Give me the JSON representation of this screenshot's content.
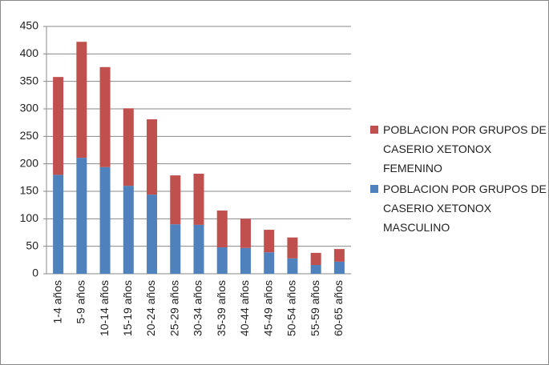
{
  "chart_data": {
    "type": "bar",
    "stacked": true,
    "categories": [
      "1-4 años",
      "5-9 años",
      "10-14 años",
      "15-19 años",
      "20-24 años",
      "25-29 años",
      "30-34 años",
      "35-39 años",
      "40-44 años",
      "45-49 años",
      "50-54 años",
      "55-59 años",
      "60-65 años"
    ],
    "series": [
      {
        "name": "POBLACION POR GRUPOS DE CASERIO XETONOX MASCULINO",
        "color": "#4f81bd",
        "values": [
          180,
          211,
          194,
          160,
          144,
          90,
          89,
          48,
          47,
          39,
          28,
          16,
          22
        ]
      },
      {
        "name": "POBLACION POR GRUPOS DE CASERIO XETONOX FEMENINO",
        "color": "#c0504d",
        "values": [
          178,
          211,
          182,
          141,
          137,
          89,
          93,
          67,
          53,
          41,
          38,
          22,
          23
        ]
      }
    ],
    "ylim": [
      0,
      450
    ],
    "yticks": [
      0,
      50,
      100,
      150,
      200,
      250,
      300,
      350,
      400,
      450
    ],
    "grid": true,
    "legend": "right"
  }
}
